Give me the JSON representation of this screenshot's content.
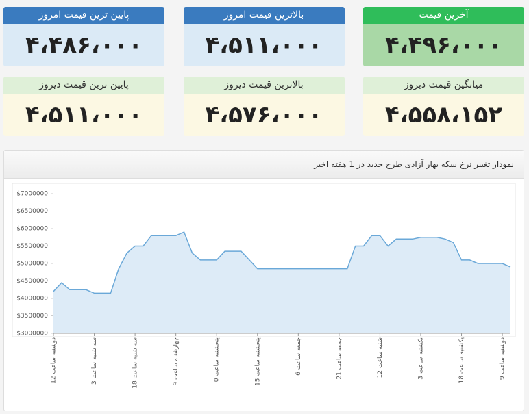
{
  "cards": [
    {
      "title": "آخرین قیمت",
      "value": "۴،۴۹۶،۰۰۰"
    },
    {
      "title": "بالاترین قیمت امروز",
      "value": "۴،۵۱۱،۰۰۰"
    },
    {
      "title": "پایین ترین قیمت امروز",
      "value": "۴،۴۸۶،۰۰۰"
    },
    {
      "title": "میانگین قیمت دیروز",
      "value": "۴،۵۵۸،۱۵۲"
    },
    {
      "title": "بالاترین قیمت دیروز",
      "value": "۴،۵۷۶،۰۰۰"
    },
    {
      "title": "پایین ترین قیمت دیروز",
      "value": "۴،۵۱۱،۰۰۰"
    }
  ],
  "chart_data": {
    "type": "area",
    "title": "نمودار تغییر نرخ سکه بهار آزادی طرح جدید در 1 هفته اخیر",
    "categories": [
      "دوشنبه ساعت 12",
      null,
      null,
      null,
      null,
      "سه شنبه ساعت 3",
      null,
      null,
      null,
      null,
      "سه شنبه ساعت 18",
      null,
      null,
      null,
      null,
      "چهارشنبه ساعت 9",
      null,
      null,
      null,
      null,
      "پنجشنبه ساعت 0",
      null,
      null,
      null,
      null,
      "پنجشنبه ساعت 15",
      null,
      null,
      null,
      null,
      "جمعه ساعت 6",
      null,
      null,
      null,
      null,
      "جمعه ساعت 21",
      null,
      null,
      null,
      null,
      "شنبه ساعت 12",
      null,
      null,
      null,
      null,
      "یکشنبه ساعت 3",
      null,
      null,
      null,
      null,
      "یکشنبه ساعت 18",
      null,
      null,
      null,
      null,
      "دوشنبه ساعت 9",
      null
    ],
    "values": [
      4200000,
      4450000,
      4250000,
      4250000,
      4250000,
      4150000,
      4150000,
      4150000,
      4850000,
      5300000,
      5500000,
      5500000,
      5800000,
      5800000,
      5800000,
      5800000,
      5900000,
      5300000,
      5100000,
      5100000,
      5100000,
      5350000,
      5350000,
      5350000,
      5100000,
      4850000,
      4850000,
      4850000,
      4850000,
      4850000,
      4850000,
      4850000,
      4850000,
      4850000,
      4850000,
      4850000,
      4850000,
      5500000,
      5500000,
      5800000,
      5800000,
      5500000,
      5700000,
      5700000,
      5700000,
      5750000,
      5750000,
      5750000,
      5700000,
      5600000,
      5100000,
      5100000,
      5000000,
      5000000,
      5000000,
      5000000,
      4900000
    ],
    "color": "#6aa8d8",
    "ylim": [
      3000000,
      7000000
    ],
    "yticks": [
      {
        "value": 3000000,
        "label": "$3000000"
      },
      {
        "value": 3500000,
        "label": "$3500000"
      },
      {
        "value": 4000000,
        "label": "$4000000"
      },
      {
        "value": 4500000,
        "label": "$4500000"
      },
      {
        "value": 5000000,
        "label": "$5000000"
      },
      {
        "value": 5500000,
        "label": "$5500000"
      },
      {
        "value": 6000000,
        "label": "$6000000"
      },
      {
        "value": 6500000,
        "label": "$6500000"
      },
      {
        "value": 7000000,
        "label": "$7000000"
      }
    ],
    "grid": false
  }
}
